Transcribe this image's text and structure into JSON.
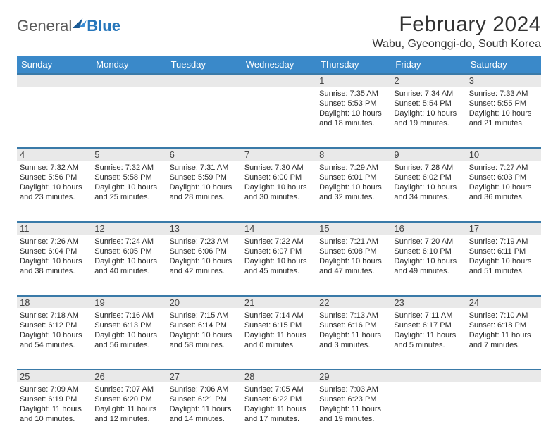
{
  "brand": {
    "part1": "General",
    "part2": "Blue"
  },
  "title": "February 2024",
  "subtitle": "Wabu, Gyeonggi-do, South Korea",
  "header_color": "#3a89c9",
  "header_text_color": "#ffffff",
  "rule_color": "#3a7aa8",
  "daynum_bg": "#e9e9e9",
  "body_font_size": 11,
  "weekdays": [
    "Sunday",
    "Monday",
    "Tuesday",
    "Wednesday",
    "Thursday",
    "Friday",
    "Saturday"
  ],
  "first_weekday_index": 4,
  "days_in_month": 29,
  "days": {
    "1": {
      "sunrise": "7:35 AM",
      "sunset": "5:53 PM",
      "daylight": "10 hours and 18 minutes."
    },
    "2": {
      "sunrise": "7:34 AM",
      "sunset": "5:54 PM",
      "daylight": "10 hours and 19 minutes."
    },
    "3": {
      "sunrise": "7:33 AM",
      "sunset": "5:55 PM",
      "daylight": "10 hours and 21 minutes."
    },
    "4": {
      "sunrise": "7:32 AM",
      "sunset": "5:56 PM",
      "daylight": "10 hours and 23 minutes."
    },
    "5": {
      "sunrise": "7:32 AM",
      "sunset": "5:58 PM",
      "daylight": "10 hours and 25 minutes."
    },
    "6": {
      "sunrise": "7:31 AM",
      "sunset": "5:59 PM",
      "daylight": "10 hours and 28 minutes."
    },
    "7": {
      "sunrise": "7:30 AM",
      "sunset": "6:00 PM",
      "daylight": "10 hours and 30 minutes."
    },
    "8": {
      "sunrise": "7:29 AM",
      "sunset": "6:01 PM",
      "daylight": "10 hours and 32 minutes."
    },
    "9": {
      "sunrise": "7:28 AM",
      "sunset": "6:02 PM",
      "daylight": "10 hours and 34 minutes."
    },
    "10": {
      "sunrise": "7:27 AM",
      "sunset": "6:03 PM",
      "daylight": "10 hours and 36 minutes."
    },
    "11": {
      "sunrise": "7:26 AM",
      "sunset": "6:04 PM",
      "daylight": "10 hours and 38 minutes."
    },
    "12": {
      "sunrise": "7:24 AM",
      "sunset": "6:05 PM",
      "daylight": "10 hours and 40 minutes."
    },
    "13": {
      "sunrise": "7:23 AM",
      "sunset": "6:06 PM",
      "daylight": "10 hours and 42 minutes."
    },
    "14": {
      "sunrise": "7:22 AM",
      "sunset": "6:07 PM",
      "daylight": "10 hours and 45 minutes."
    },
    "15": {
      "sunrise": "7:21 AM",
      "sunset": "6:08 PM",
      "daylight": "10 hours and 47 minutes."
    },
    "16": {
      "sunrise": "7:20 AM",
      "sunset": "6:10 PM",
      "daylight": "10 hours and 49 minutes."
    },
    "17": {
      "sunrise": "7:19 AM",
      "sunset": "6:11 PM",
      "daylight": "10 hours and 51 minutes."
    },
    "18": {
      "sunrise": "7:18 AM",
      "sunset": "6:12 PM",
      "daylight": "10 hours and 54 minutes."
    },
    "19": {
      "sunrise": "7:16 AM",
      "sunset": "6:13 PM",
      "daylight": "10 hours and 56 minutes."
    },
    "20": {
      "sunrise": "7:15 AM",
      "sunset": "6:14 PM",
      "daylight": "10 hours and 58 minutes."
    },
    "21": {
      "sunrise": "7:14 AM",
      "sunset": "6:15 PM",
      "daylight": "11 hours and 0 minutes."
    },
    "22": {
      "sunrise": "7:13 AM",
      "sunset": "6:16 PM",
      "daylight": "11 hours and 3 minutes."
    },
    "23": {
      "sunrise": "7:11 AM",
      "sunset": "6:17 PM",
      "daylight": "11 hours and 5 minutes."
    },
    "24": {
      "sunrise": "7:10 AM",
      "sunset": "6:18 PM",
      "daylight": "11 hours and 7 minutes."
    },
    "25": {
      "sunrise": "7:09 AM",
      "sunset": "6:19 PM",
      "daylight": "11 hours and 10 minutes."
    },
    "26": {
      "sunrise": "7:07 AM",
      "sunset": "6:20 PM",
      "daylight": "11 hours and 12 minutes."
    },
    "27": {
      "sunrise": "7:06 AM",
      "sunset": "6:21 PM",
      "daylight": "11 hours and 14 minutes."
    },
    "28": {
      "sunrise": "7:05 AM",
      "sunset": "6:22 PM",
      "daylight": "11 hours and 17 minutes."
    },
    "29": {
      "sunrise": "7:03 AM",
      "sunset": "6:23 PM",
      "daylight": "11 hours and 19 minutes."
    }
  },
  "labels": {
    "sunrise": "Sunrise:",
    "sunset": "Sunset:",
    "daylight": "Daylight:"
  }
}
